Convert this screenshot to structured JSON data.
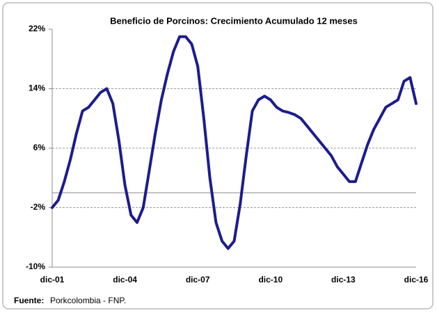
{
  "chart_data": {
    "type": "line",
    "title": "Beneficio de Porcinos:  Crecimiento Acumulado  12 meses",
    "source_label": "Fuente:",
    "source": "Porkcolombia - FNP.",
    "categories": [
      "dic-01",
      null,
      null,
      null,
      null,
      null,
      null,
      null,
      null,
      null,
      null,
      null,
      "dic-04",
      null,
      null,
      null,
      null,
      null,
      null,
      null,
      null,
      null,
      null,
      null,
      "dic-07",
      null,
      null,
      null,
      null,
      null,
      null,
      null,
      null,
      null,
      null,
      null,
      "dic-10",
      null,
      null,
      null,
      null,
      null,
      null,
      null,
      null,
      null,
      null,
      null,
      "dic-13",
      null,
      null,
      null,
      null,
      null,
      null,
      null,
      null,
      null,
      null,
      null,
      "dic-16"
    ],
    "series": [
      {
        "color": "#1c1c8e",
        "values": [
          -2,
          -1,
          1.5,
          4.5,
          8,
          11,
          11.5,
          12.5,
          13.5,
          14,
          12,
          7,
          1,
          -3,
          -4,
          -2,
          3,
          8,
          12.5,
          16,
          19,
          21,
          21,
          20,
          17,
          10,
          2,
          -4,
          -6.5,
          -7.5,
          -6.5,
          -1.5,
          5,
          11,
          12.5,
          13,
          12.5,
          11.5,
          11,
          10.8,
          10.5,
          10,
          9,
          8,
          7,
          6,
          5,
          3.5,
          2.5,
          1.5,
          1.5,
          4,
          6.5,
          8.5,
          10,
          11.5,
          12,
          12.5,
          15,
          15.5,
          12
        ]
      }
    ],
    "ylim": [
      -10,
      22
    ],
    "yticks": [
      {
        "value": -10,
        "label": "-10%"
      },
      {
        "value": -2,
        "label": "-2%"
      },
      {
        "value": 6,
        "label": "6%"
      },
      {
        "value": 14,
        "label": "14%"
      },
      {
        "value": 22,
        "label": "22%"
      }
    ],
    "hline": 0,
    "grid": true
  }
}
